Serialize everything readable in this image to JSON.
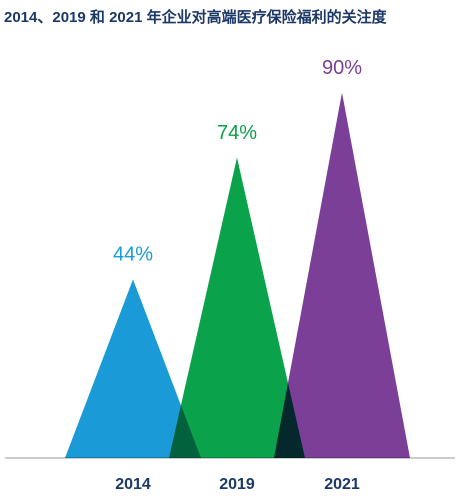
{
  "chart_data": {
    "type": "triangle",
    "title": "2014、2019 和 2021 年企业对高端医疗保险福利的关注度",
    "categories": [
      "2014",
      "2019",
      "2021"
    ],
    "values": [
      44,
      74,
      90
    ],
    "value_labels": [
      "44%",
      "74%",
      "90%"
    ],
    "colors": [
      "#1a9ad6",
      "#0aa24a",
      "#7b3f98"
    ],
    "ylim": [
      0,
      100
    ]
  }
}
